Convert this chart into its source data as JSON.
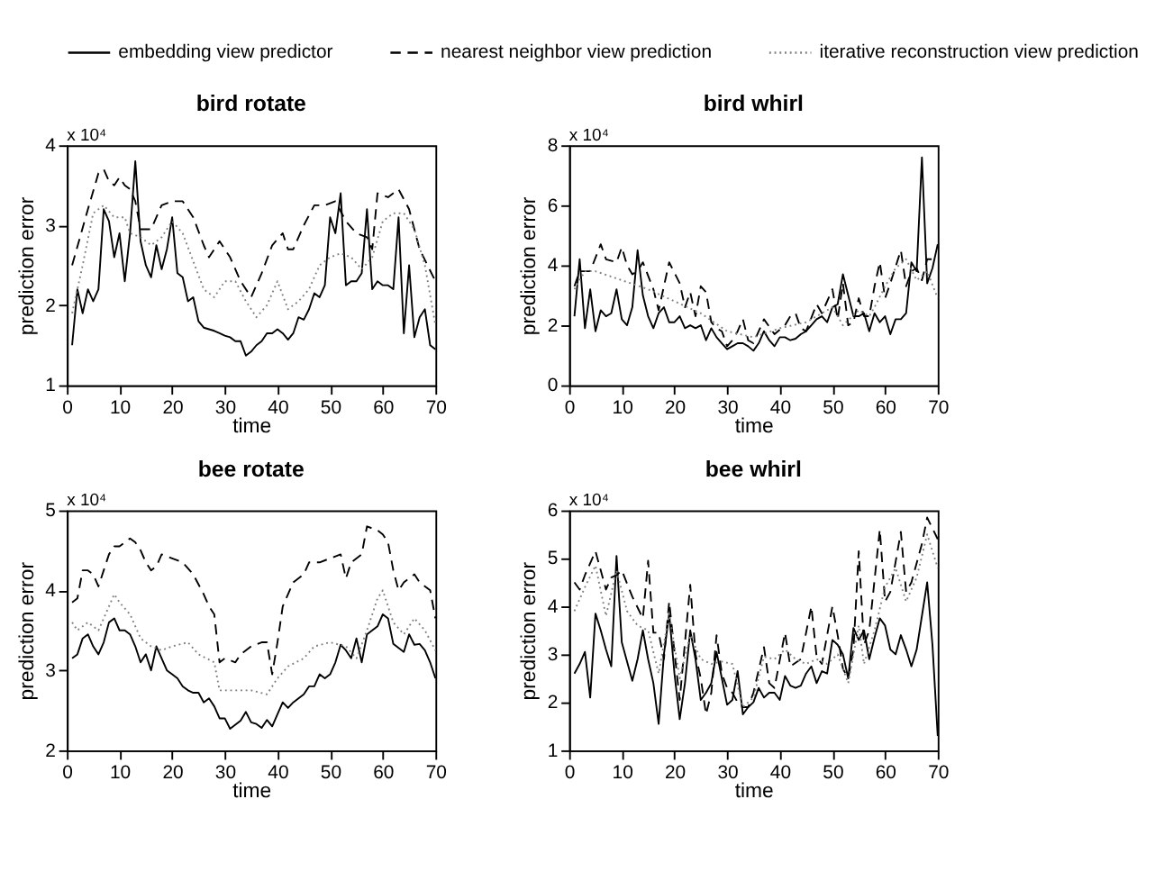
{
  "chart_data": [
    {
      "type": "line",
      "title": "bird  rotate",
      "xlabel": "time",
      "ylabel": "prediction error",
      "annotations": [
        "x 10⁴"
      ],
      "xlim": [
        0,
        70
      ],
      "xticks": [
        0,
        10,
        20,
        30,
        40,
        50,
        60,
        70
      ],
      "ylim": [
        1,
        4
      ],
      "yticks": [
        1,
        2,
        3,
        4
      ],
      "grid": false,
      "legend": "top",
      "x": [
        1,
        2,
        3,
        4,
        5,
        6,
        7,
        8,
        9,
        10,
        11,
        12,
        13,
        14,
        15,
        16,
        17,
        18,
        19,
        20,
        21,
        22,
        23,
        24,
        25,
        26,
        27,
        28,
        29,
        30,
        31,
        32,
        33,
        34,
        35,
        36,
        37,
        38,
        39,
        40,
        41,
        42,
        43,
        44,
        45,
        46,
        47,
        48,
        49,
        50,
        51,
        52,
        53,
        54,
        55,
        56,
        57,
        58,
        59,
        60,
        61,
        62,
        63,
        64,
        65,
        66,
        67,
        68,
        69,
        70
      ],
      "series": [
        {
          "name": "embedding view predictor",
          "color": "#000000",
          "line_style": "solid",
          "values": [
            1.5,
            2.2,
            1.9,
            2.2,
            2.05,
            2.2,
            3.2,
            3.05,
            2.6,
            2.9,
            2.3,
            2.9,
            3.8,
            2.8,
            2.5,
            2.35,
            2.75,
            2.45,
            2.7,
            3.1,
            2.4,
            2.35,
            2.05,
            2.1,
            1.8,
            1.72,
            1.7,
            1.68,
            1.65,
            1.62,
            1.6,
            1.55,
            1.55,
            1.37,
            1.42,
            1.5,
            1.55,
            1.65,
            1.65,
            1.7,
            1.65,
            1.57,
            1.65,
            1.85,
            1.82,
            1.95,
            2.15,
            2.1,
            2.25,
            3.1,
            2.9,
            3.4,
            2.25,
            2.3,
            2.3,
            2.4,
            3.2,
            2.2,
            2.3,
            2.25,
            2.25,
            2.2,
            3.1,
            1.65,
            2.5,
            1.6,
            1.85,
            1.95,
            1.5,
            1.45
          ]
        },
        {
          "name": "nearest neighbor view prediction",
          "color": "#000000",
          "line_style": "dashed",
          "x": [
            1,
            4,
            6,
            7,
            8,
            9,
            10,
            11,
            12,
            13,
            14,
            16,
            18,
            20,
            22,
            24,
            26,
            27,
            29,
            31,
            33,
            35,
            37,
            39,
            41,
            42,
            43,
            45,
            47,
            49,
            51,
            53,
            55,
            57,
            58,
            59,
            61,
            63,
            65,
            67,
            70
          ],
          "values": [
            2.5,
            3.2,
            3.65,
            3.7,
            3.55,
            3.5,
            3.6,
            3.5,
            3.45,
            3.3,
            2.95,
            2.95,
            3.25,
            3.3,
            3.3,
            3.1,
            2.75,
            2.6,
            2.8,
            2.6,
            2.3,
            2.1,
            2.4,
            2.75,
            2.9,
            2.7,
            2.7,
            3.0,
            3.25,
            3.25,
            3.3,
            3.05,
            2.9,
            2.85,
            2.7,
            3.4,
            3.35,
            3.45,
            3.2,
            2.7,
            2.3
          ]
        },
        {
          "name": "iterative reconstruction view prediction",
          "color": "#808080",
          "line_style": "dotted",
          "x": [
            1,
            3,
            5,
            7,
            9,
            11,
            12,
            14,
            16,
            18,
            20,
            22,
            24,
            26,
            28,
            30,
            32,
            34,
            36,
            38,
            40,
            42,
            44,
            46,
            48,
            50,
            52,
            54,
            56,
            58,
            60,
            62,
            64,
            66,
            68,
            70
          ],
          "values": [
            1.9,
            2.5,
            3.15,
            3.25,
            3.1,
            3.1,
            2.9,
            2.85,
            2.75,
            2.85,
            3.05,
            2.9,
            2.55,
            2.2,
            2.1,
            2.3,
            2.3,
            2.05,
            1.85,
            2.0,
            2.3,
            1.95,
            2.05,
            2.2,
            2.5,
            2.6,
            2.65,
            2.6,
            2.45,
            2.6,
            3.05,
            3.15,
            3.15,
            2.95,
            2.5,
            1.75
          ]
        }
      ]
    },
    {
      "type": "line",
      "title": "bird  whirl",
      "xlabel": "time",
      "ylabel": "prediction error",
      "annotations": [
        "x 10⁴"
      ],
      "xlim": [
        0,
        70
      ],
      "xticks": [
        0,
        10,
        20,
        30,
        40,
        50,
        60,
        70
      ],
      "ylim": [
        0,
        8
      ],
      "yticks": [
        0,
        2,
        4,
        6,
        8
      ],
      "grid": false,
      "legend": "top",
      "x": [
        1,
        2,
        3,
        4,
        5,
        6,
        7,
        8,
        9,
        10,
        11,
        12,
        13,
        14,
        15,
        16,
        17,
        18,
        19,
        20,
        21,
        22,
        23,
        24,
        25,
        26,
        27,
        28,
        29,
        30,
        31,
        32,
        33,
        34,
        35,
        36,
        37,
        38,
        39,
        40,
        41,
        42,
        43,
        44,
        45,
        46,
        47,
        48,
        49,
        50,
        51,
        52,
        53,
        54,
        55,
        56,
        57,
        58,
        59,
        60,
        61,
        62,
        63,
        64,
        65,
        66,
        67,
        68,
        69,
        70
      ],
      "series": [
        {
          "name": "embedding view predictor",
          "color": "#000000",
          "line_style": "solid",
          "values": [
            2.3,
            4.2,
            1.9,
            3.2,
            1.8,
            2.5,
            2.3,
            2.4,
            3.2,
            2.2,
            2.0,
            2.6,
            4.5,
            3.0,
            2.3,
            1.9,
            2.4,
            2.6,
            2.1,
            2.1,
            2.3,
            1.9,
            2.0,
            1.9,
            2.0,
            1.5,
            1.9,
            1.6,
            1.4,
            1.2,
            1.3,
            1.4,
            1.4,
            1.3,
            1.15,
            1.4,
            1.8,
            1.5,
            1.3,
            1.6,
            1.6,
            1.5,
            1.55,
            1.7,
            1.8,
            2.0,
            2.2,
            2.3,
            2.1,
            2.6,
            2.7,
            3.7,
            3.0,
            2.3,
            2.3,
            2.4,
            1.8,
            2.4,
            2.1,
            2.3,
            1.7,
            2.2,
            2.2,
            2.4,
            4.1,
            3.8,
            7.6,
            3.4,
            3.9,
            4.7
          ]
        },
        {
          "name": "nearest neighbor view prediction",
          "color": "#000000",
          "line_style": "dashed",
          "x": [
            1,
            2,
            4,
            6,
            7,
            9,
            10,
            11,
            12,
            13,
            14,
            16,
            17,
            19,
            21,
            22,
            23,
            24,
            25,
            26,
            27,
            28,
            29,
            30,
            31,
            32,
            33,
            34,
            35,
            37,
            39,
            41,
            42,
            43,
            44,
            45,
            47,
            48,
            50,
            51,
            52,
            53,
            54,
            55,
            56,
            57,
            58,
            59,
            60,
            61,
            63,
            64,
            65,
            66,
            67,
            68,
            69,
            70
          ],
          "values": [
            3.3,
            3.8,
            3.8,
            4.7,
            4.2,
            4.1,
            4.6,
            4.0,
            3.7,
            3.8,
            4.1,
            3.2,
            2.5,
            4.1,
            3.4,
            2.6,
            3.1,
            2.3,
            3.3,
            3.1,
            2.1,
            1.9,
            1.8,
            1.3,
            1.5,
            1.8,
            2.2,
            1.5,
            1.4,
            2.2,
            1.7,
            2.0,
            2.3,
            2.4,
            1.9,
            1.8,
            2.7,
            2.4,
            3.2,
            2.2,
            3.4,
            2.0,
            2.1,
            2.9,
            2.3,
            2.3,
            3.3,
            4.1,
            2.9,
            3.4,
            4.5,
            3.3,
            3.8,
            3.9,
            3.5,
            4.2,
            4.2,
            4.1
          ]
        },
        {
          "name": "iterative reconstruction view prediction",
          "color": "#808080",
          "line_style": "dotted",
          "x": [
            1,
            3,
            5,
            10,
            15,
            20,
            25,
            30,
            35,
            40,
            45,
            50,
            52,
            55,
            57,
            58,
            60,
            62,
            64,
            66,
            68,
            70
          ],
          "values": [
            3.2,
            3.8,
            3.8,
            3.5,
            3.2,
            2.8,
            2.4,
            1.8,
            1.6,
            1.9,
            2.1,
            2.6,
            2.0,
            2.5,
            2.3,
            2.6,
            3.3,
            3.9,
            4.2,
            3.5,
            3.8,
            2.9
          ]
        }
      ]
    },
    {
      "type": "line",
      "title": "bee  rotate",
      "xlabel": "time",
      "ylabel": "prediction error",
      "annotations": [
        "x 10⁴"
      ],
      "xlim": [
        0,
        70
      ],
      "xticks": [
        0,
        10,
        20,
        30,
        40,
        50,
        60,
        70
      ],
      "ylim": [
        2,
        5
      ],
      "yticks": [
        2,
        3,
        4,
        5
      ],
      "grid": false,
      "legend": "top",
      "x": [
        1,
        2,
        3,
        4,
        5,
        6,
        7,
        8,
        9,
        10,
        11,
        12,
        13,
        14,
        15,
        16,
        17,
        18,
        19,
        20,
        21,
        22,
        23,
        24,
        25,
        26,
        27,
        28,
        29,
        30,
        31,
        32,
        33,
        34,
        35,
        36,
        37,
        38,
        39,
        40,
        41,
        42,
        43,
        44,
        45,
        46,
        47,
        48,
        49,
        50,
        51,
        52,
        53,
        54,
        55,
        56,
        57,
        58,
        59,
        60,
        61,
        62,
        63,
        64,
        65,
        66,
        67,
        68,
        69,
        70
      ],
      "series": [
        {
          "name": "embedding view predictor",
          "color": "#000000",
          "line_style": "solid",
          "values": [
            3.15,
            3.2,
            3.4,
            3.45,
            3.3,
            3.2,
            3.35,
            3.6,
            3.65,
            3.5,
            3.5,
            3.45,
            3.3,
            3.1,
            3.2,
            3.0,
            3.3,
            3.15,
            3.0,
            2.95,
            2.9,
            2.8,
            2.75,
            2.72,
            2.72,
            2.6,
            2.65,
            2.55,
            2.4,
            2.4,
            2.27,
            2.32,
            2.37,
            2.48,
            2.35,
            2.33,
            2.28,
            2.38,
            2.3,
            2.45,
            2.6,
            2.53,
            2.6,
            2.65,
            2.7,
            2.8,
            2.8,
            2.95,
            2.9,
            2.95,
            3.1,
            3.32,
            3.25,
            3.15,
            3.4,
            3.1,
            3.45,
            3.5,
            3.55,
            3.7,
            3.65,
            3.33,
            3.28,
            3.23,
            3.45,
            3.32,
            3.33,
            3.25,
            3.1,
            2.9
          ]
        },
        {
          "name": "nearest neighbor view prediction",
          "color": "#000000",
          "line_style": "dashed",
          "x": [
            1,
            2,
            3,
            4,
            5,
            6,
            7,
            8,
            9,
            10,
            11,
            12,
            13,
            14,
            15,
            16,
            17,
            18,
            20,
            22,
            24,
            26,
            27,
            28,
            29,
            30,
            32,
            33,
            35,
            37,
            38,
            39,
            40,
            41,
            43,
            45,
            46,
            48,
            50,
            52,
            53,
            54,
            56,
            57,
            59,
            60,
            61,
            62,
            63,
            64,
            66,
            67,
            69,
            70
          ],
          "values": [
            3.85,
            3.9,
            4.25,
            4.25,
            4.2,
            4.05,
            4.25,
            4.45,
            4.55,
            4.55,
            4.6,
            4.65,
            4.6,
            4.5,
            4.35,
            4.25,
            4.3,
            4.45,
            4.4,
            4.35,
            4.2,
            3.95,
            3.8,
            3.7,
            3.1,
            3.15,
            3.1,
            3.2,
            3.3,
            3.35,
            3.35,
            2.95,
            3.35,
            3.8,
            4.1,
            4.2,
            4.35,
            4.35,
            4.4,
            4.45,
            4.15,
            4.35,
            4.45,
            4.8,
            4.75,
            4.7,
            4.6,
            4.25,
            4.0,
            4.1,
            4.2,
            4.1,
            4.0,
            3.65
          ]
        },
        {
          "name": "iterative reconstruction view prediction",
          "color": "#808080",
          "line_style": "dotted",
          "x": [
            1,
            2,
            4,
            6,
            8,
            9,
            10,
            12,
            14,
            16,
            18,
            20,
            23,
            25,
            28,
            29,
            31,
            35,
            38,
            40,
            42,
            45,
            47,
            50,
            53,
            55,
            57,
            59,
            60,
            62,
            64,
            66,
            68,
            70
          ],
          "values": [
            3.6,
            3.5,
            3.6,
            3.5,
            3.8,
            3.95,
            3.85,
            3.7,
            3.4,
            3.3,
            3.25,
            3.3,
            3.35,
            3.2,
            3.1,
            2.75,
            2.75,
            2.75,
            2.7,
            2.9,
            3.05,
            3.15,
            3.3,
            3.35,
            3.3,
            3.15,
            3.5,
            3.9,
            4.0,
            3.6,
            3.45,
            3.65,
            3.5,
            3.25
          ]
        }
      ]
    },
    {
      "type": "line",
      "title": "bee  whirl",
      "xlabel": "time",
      "ylabel": "prediction error",
      "annotations": [
        "x 10⁴"
      ],
      "xlim": [
        0,
        70
      ],
      "xticks": [
        0,
        10,
        20,
        30,
        40,
        50,
        60,
        70
      ],
      "ylim": [
        1,
        6
      ],
      "yticks": [
        1,
        2,
        3,
        4,
        5,
        6
      ],
      "grid": false,
      "legend": "top",
      "x": [
        1,
        2,
        3,
        4,
        5,
        6,
        7,
        8,
        9,
        10,
        11,
        12,
        13,
        14,
        15,
        16,
        17,
        18,
        19,
        20,
        21,
        22,
        23,
        24,
        25,
        26,
        27,
        28,
        29,
        30,
        31,
        32,
        33,
        34,
        35,
        36,
        37,
        38,
        39,
        40,
        41,
        42,
        43,
        44,
        45,
        46,
        47,
        48,
        49,
        50,
        51,
        52,
        53,
        54,
        55,
        56,
        57,
        58,
        59,
        60,
        61,
        62,
        63,
        64,
        65,
        66,
        67,
        68,
        69,
        70
      ],
      "series": [
        {
          "name": "embedding view predictor",
          "color": "#000000",
          "line_style": "solid",
          "values": [
            2.6,
            2.8,
            3.05,
            2.1,
            3.85,
            3.5,
            3.1,
            2.75,
            5.05,
            3.25,
            2.85,
            2.45,
            2.9,
            3.5,
            2.9,
            2.4,
            1.55,
            3.0,
            3.85,
            2.6,
            1.65,
            2.4,
            3.5,
            2.9,
            2.05,
            2.2,
            2.4,
            3.05,
            2.5,
            1.95,
            2.05,
            2.65,
            1.75,
            1.9,
            2.0,
            2.3,
            2.1,
            2.2,
            2.2,
            2.05,
            2.55,
            2.35,
            2.3,
            2.35,
            2.6,
            2.75,
            2.4,
            2.65,
            2.6,
            3.3,
            3.2,
            3.0,
            2.5,
            3.55,
            3.3,
            3.5,
            2.9,
            3.35,
            3.75,
            3.6,
            3.1,
            3.0,
            3.4,
            3.1,
            2.75,
            3.1,
            3.8,
            4.5,
            3.2,
            1.3
          ]
        },
        {
          "name": "nearest neighbor view prediction",
          "color": "#000000",
          "line_style": "dashed",
          "x": [
            1,
            2,
            3,
            5,
            7,
            8,
            9,
            10,
            12,
            14,
            15,
            16,
            17,
            18,
            19,
            20,
            21,
            23,
            24,
            25,
            26,
            27,
            28,
            29,
            30,
            31,
            32,
            33,
            34,
            35,
            37,
            38,
            39,
            41,
            42,
            44,
            46,
            47,
            48,
            50,
            51,
            52,
            53,
            54,
            55,
            56,
            57,
            59,
            60,
            61,
            63,
            64,
            65,
            67,
            68,
            70
          ],
          "values": [
            4.5,
            4.35,
            4.65,
            5.15,
            4.35,
            4.6,
            4.65,
            4.75,
            4.2,
            3.75,
            4.95,
            3.45,
            3.45,
            2.9,
            4.1,
            3.05,
            2.05,
            4.45,
            3.0,
            2.5,
            1.75,
            2.2,
            3.4,
            2.6,
            2.3,
            2.2,
            2.0,
            1.9,
            1.9,
            2.2,
            3.15,
            2.4,
            2.3,
            3.45,
            2.75,
            2.9,
            4.0,
            2.95,
            2.8,
            4.0,
            3.4,
            2.7,
            2.5,
            3.1,
            5.15,
            3.2,
            3.5,
            5.6,
            4.1,
            4.3,
            5.55,
            4.3,
            4.5,
            5.3,
            5.85,
            5.4
          ]
        },
        {
          "name": "iterative reconstruction view prediction",
          "color": "#808080",
          "line_style": "dotted",
          "x": [
            1,
            3,
            5,
            7,
            9,
            11,
            13,
            15,
            17,
            19,
            21,
            23,
            25,
            27,
            29,
            31,
            33,
            35,
            37,
            39,
            41,
            43,
            45,
            47,
            49,
            51,
            53,
            55,
            56,
            58,
            60,
            62,
            64,
            66,
            68,
            70
          ],
          "values": [
            3.9,
            4.4,
            4.85,
            3.8,
            4.75,
            3.9,
            3.6,
            3.5,
            2.6,
            3.85,
            2.5,
            3.4,
            2.9,
            2.8,
            2.85,
            2.8,
            1.9,
            2.1,
            2.95,
            2.9,
            3.1,
            2.9,
            2.8,
            2.9,
            2.8,
            3.0,
            2.4,
            3.6,
            2.8,
            3.5,
            4.4,
            4.8,
            4.1,
            4.6,
            5.5,
            4.8
          ]
        }
      ]
    }
  ]
}
